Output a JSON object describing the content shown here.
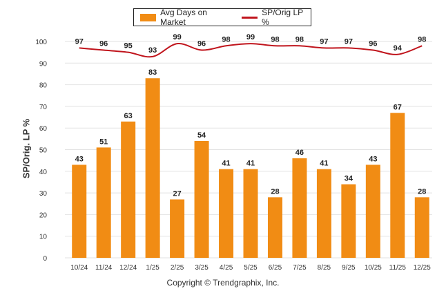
{
  "chart_data": {
    "type": "bar+line",
    "categories": [
      "10/24",
      "11/24",
      "12/24",
      "1/25",
      "2/25",
      "3/25",
      "4/25",
      "5/25",
      "6/25",
      "7/25",
      "8/25",
      "9/25",
      "10/25",
      "11/25",
      "12/25"
    ],
    "series": [
      {
        "name": "Avg Days on Market",
        "type": "bar",
        "color": "#f18c14",
        "values": [
          43,
          51,
          63,
          83,
          27,
          54,
          41,
          41,
          28,
          46,
          41,
          34,
          43,
          67,
          28
        ]
      },
      {
        "name": "SP/Orig LP %",
        "type": "line",
        "color": "#c0141c",
        "values": [
          97,
          96,
          95,
          93,
          99,
          96,
          98,
          99,
          98,
          98,
          97,
          97,
          96,
          94,
          98
        ]
      }
    ],
    "ylabel": "SP/Orig. LP %",
    "xlabel": "",
    "ylim": [
      0,
      100
    ],
    "yticks": [
      0,
      10,
      20,
      30,
      40,
      50,
      60,
      70,
      80,
      90,
      100
    ],
    "grid": true,
    "legend_position": "top-center"
  },
  "footer": {
    "copyright": "Copyright © Trendgraphix, Inc."
  }
}
